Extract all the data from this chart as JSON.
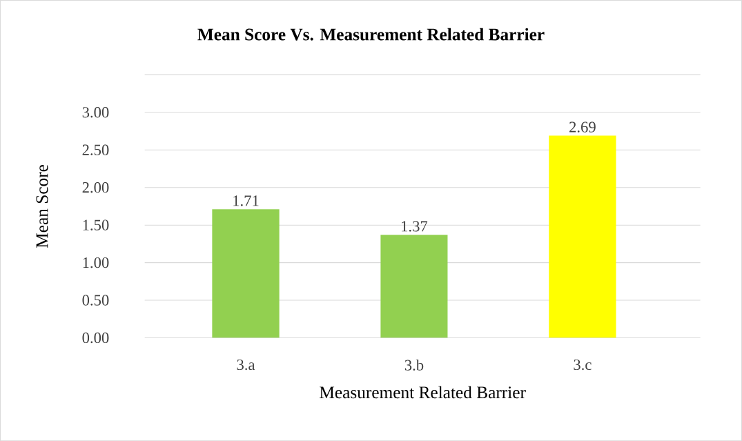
{
  "chart_data": {
    "type": "bar",
    "title": "Mean Score Vs. Measurement Related Barrier",
    "xlabel": "Measurement Related Barrier",
    "ylabel": "Mean Score",
    "categories": [
      "3.a",
      "3.b",
      "3.c"
    ],
    "values": [
      1.71,
      1.37,
      2.69
    ],
    "colors": [
      "#92d050",
      "#92d050",
      "#ffff00"
    ],
    "ylim": [
      0,
      3.5
    ],
    "yticks": [
      {
        "value": 0,
        "label": "0.00"
      },
      {
        "value": 0.5,
        "label": "0.50"
      },
      {
        "value": 1,
        "label": "1.00"
      },
      {
        "value": 1.5,
        "label": "1.50"
      },
      {
        "value": 2,
        "label": "2.00"
      },
      {
        "value": 2.5,
        "label": "2.50"
      },
      {
        "value": 3,
        "label": "3.00"
      },
      {
        "value": 3.5,
        "label": null
      }
    ],
    "grid": "y",
    "data_labels": true
  }
}
